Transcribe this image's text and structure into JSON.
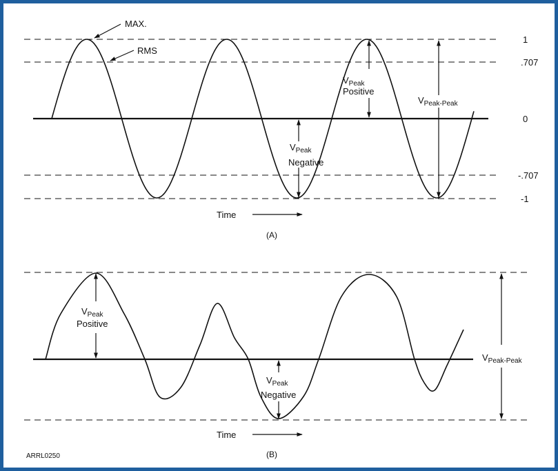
{
  "colors": {
    "border": "#1f5f9e",
    "ink": "#111111",
    "background": "#ffffff"
  },
  "panel_a": {
    "max_label": "MAX.",
    "rms_label": "RMS",
    "levels": [
      "1",
      ".707",
      "0",
      "-.707",
      "-1"
    ],
    "vpeak_positive": {
      "v": "V",
      "sub": "Peak",
      "word": "Positive"
    },
    "vpeak_negative": {
      "v": "V",
      "sub": "Peak",
      "word": "Negative"
    },
    "vpeak_peak": {
      "v": "V",
      "sub": "Peak-Peak"
    },
    "time_label": "Time",
    "caption": "(A)"
  },
  "panel_b": {
    "vpeak_positive": {
      "v": "V",
      "sub": "Peak",
      "word": "Positive"
    },
    "vpeak_negative": {
      "v": "V",
      "sub": "Peak",
      "word": "Negative"
    },
    "vpeak_peak": {
      "v": "V",
      "sub": "Peak-Peak"
    },
    "time_label": "Time",
    "caption": "(B)"
  },
  "credit": "ARRL0250"
}
